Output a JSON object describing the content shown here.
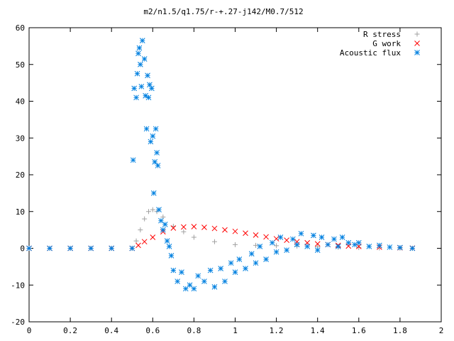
{
  "chart_data": {
    "type": "scatter",
    "title": "m2/n1.5/q1.75/r-+.27-j142/M0.7/512",
    "xlabel": "",
    "ylabel": "",
    "xlim": [
      0,
      2
    ],
    "ylim": [
      -20,
      60
    ],
    "x_ticks": [
      "0",
      "0.2",
      "0.4",
      "0.6",
      "0.8",
      "1",
      "1.2",
      "1.4",
      "1.6",
      "1.8",
      "2"
    ],
    "y_ticks": [
      "-20",
      "-10",
      "0",
      "10",
      "20",
      "30",
      "40",
      "50",
      "60"
    ],
    "grid": false,
    "legend_position": "top-right",
    "series": [
      {
        "name": "R stress",
        "marker": "plus",
        "color": "#a0a0a0",
        "points": [
          [
            0.0,
            0.0
          ],
          [
            0.1,
            0.0
          ],
          [
            0.2,
            0.0
          ],
          [
            0.3,
            0.0
          ],
          [
            0.4,
            0.0
          ],
          [
            0.5,
            0.0
          ],
          [
            0.52,
            2.0
          ],
          [
            0.54,
            5.0
          ],
          [
            0.56,
            8.0
          ],
          [
            0.58,
            10.0
          ],
          [
            0.6,
            10.5
          ],
          [
            0.62,
            10.0
          ],
          [
            0.65,
            8.5
          ],
          [
            0.7,
            6.0
          ],
          [
            0.75,
            4.5
          ],
          [
            0.8,
            3.0
          ],
          [
            0.9,
            1.8
          ],
          [
            1.0,
            1.0
          ],
          [
            1.1,
            0.8
          ],
          [
            1.2,
            0.7
          ],
          [
            1.3,
            0.6
          ],
          [
            1.4,
            0.4
          ],
          [
            1.5,
            0.3
          ],
          [
            1.6,
            0.2
          ],
          [
            1.7,
            0.1
          ],
          [
            1.8,
            0.05
          ],
          [
            1.86,
            0.0
          ]
        ]
      },
      {
        "name": "G work",
        "marker": "cross",
        "color": "#ff0000",
        "points": [
          [
            0.0,
            0.0
          ],
          [
            0.1,
            0.0
          ],
          [
            0.2,
            0.0
          ],
          [
            0.3,
            0.0
          ],
          [
            0.4,
            0.0
          ],
          [
            0.5,
            0.0
          ],
          [
            0.53,
            0.8
          ],
          [
            0.56,
            1.8
          ],
          [
            0.6,
            3.0
          ],
          [
            0.65,
            4.5
          ],
          [
            0.7,
            5.5
          ],
          [
            0.75,
            5.8
          ],
          [
            0.8,
            5.9
          ],
          [
            0.85,
            5.7
          ],
          [
            0.9,
            5.4
          ],
          [
            0.95,
            5.0
          ],
          [
            1.0,
            4.6
          ],
          [
            1.05,
            4.1
          ],
          [
            1.1,
            3.6
          ],
          [
            1.15,
            3.1
          ],
          [
            1.2,
            2.6
          ],
          [
            1.25,
            2.2
          ],
          [
            1.3,
            1.8
          ],
          [
            1.35,
            1.5
          ],
          [
            1.4,
            1.2
          ],
          [
            1.45,
            1.0
          ],
          [
            1.5,
            0.8
          ],
          [
            1.55,
            0.6
          ],
          [
            1.6,
            0.5
          ],
          [
            1.7,
            0.3
          ],
          [
            1.8,
            0.15
          ],
          [
            1.86,
            0.05
          ]
        ]
      },
      {
        "name": "Acoustic flux",
        "marker": "star",
        "color": "#0080e0",
        "points": [
          [
            0.0,
            0.0
          ],
          [
            0.1,
            0.0
          ],
          [
            0.2,
            0.0
          ],
          [
            0.3,
            0.0
          ],
          [
            0.4,
            0.0
          ],
          [
            0.5,
            0.0
          ],
          [
            0.505,
            24.0
          ],
          [
            0.51,
            43.5
          ],
          [
            0.52,
            41.0
          ],
          [
            0.525,
            47.5
          ],
          [
            0.53,
            53.0
          ],
          [
            0.535,
            54.5
          ],
          [
            0.54,
            50.0
          ],
          [
            0.545,
            44.0
          ],
          [
            0.55,
            56.5
          ],
          [
            0.56,
            51.5
          ],
          [
            0.565,
            41.5
          ],
          [
            0.57,
            32.5
          ],
          [
            0.575,
            47.0
          ],
          [
            0.58,
            41.0
          ],
          [
            0.585,
            44.5
          ],
          [
            0.59,
            29.0
          ],
          [
            0.595,
            43.5
          ],
          [
            0.6,
            30.5
          ],
          [
            0.605,
            15.0
          ],
          [
            0.61,
            23.5
          ],
          [
            0.615,
            32.5
          ],
          [
            0.62,
            26.0
          ],
          [
            0.625,
            22.5
          ],
          [
            0.63,
            10.5
          ],
          [
            0.64,
            7.5
          ],
          [
            0.65,
            5.0
          ],
          [
            0.66,
            6.5
          ],
          [
            0.67,
            2.0
          ],
          [
            0.68,
            0.5
          ],
          [
            0.69,
            -2.0
          ],
          [
            0.7,
            -6.0
          ],
          [
            0.72,
            -9.0
          ],
          [
            0.74,
            -6.5
          ],
          [
            0.76,
            -11.0
          ],
          [
            0.78,
            -10.0
          ],
          [
            0.8,
            -11.0
          ],
          [
            0.82,
            -7.5
          ],
          [
            0.85,
            -9.0
          ],
          [
            0.88,
            -6.0
          ],
          [
            0.9,
            -10.5
          ],
          [
            0.93,
            -5.5
          ],
          [
            0.95,
            -9.0
          ],
          [
            0.98,
            -4.0
          ],
          [
            1.0,
            -6.5
          ],
          [
            1.02,
            -3.0
          ],
          [
            1.05,
            -5.5
          ],
          [
            1.08,
            -1.5
          ],
          [
            1.1,
            -4.0
          ],
          [
            1.12,
            0.5
          ],
          [
            1.15,
            -3.0
          ],
          [
            1.18,
            1.5
          ],
          [
            1.2,
            -1.0
          ],
          [
            1.22,
            3.0
          ],
          [
            1.25,
            -0.5
          ],
          [
            1.28,
            2.5
          ],
          [
            1.3,
            1.0
          ],
          [
            1.32,
            4.0
          ],
          [
            1.35,
            0.5
          ],
          [
            1.38,
            3.5
          ],
          [
            1.4,
            -0.5
          ],
          [
            1.42,
            3.0
          ],
          [
            1.45,
            1.0
          ],
          [
            1.48,
            2.5
          ],
          [
            1.5,
            0.5
          ],
          [
            1.52,
            3.0
          ],
          [
            1.55,
            1.5
          ],
          [
            1.58,
            1.0
          ],
          [
            1.6,
            1.5
          ],
          [
            1.65,
            0.5
          ],
          [
            1.7,
            0.8
          ],
          [
            1.75,
            0.3
          ],
          [
            1.8,
            0.2
          ],
          [
            1.86,
            0.0
          ]
        ]
      }
    ]
  }
}
